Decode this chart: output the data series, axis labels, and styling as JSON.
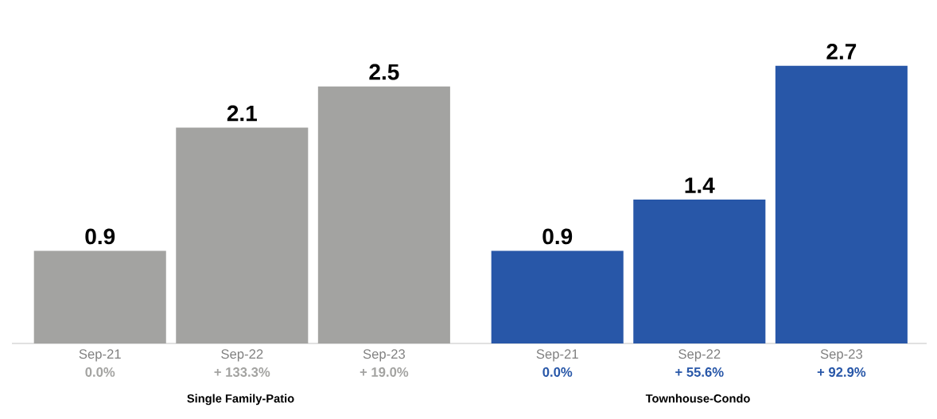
{
  "chart_data": [
    {
      "type": "bar",
      "categories": [
        "Sep-21",
        "Sep-22",
        "Sep-23"
      ],
      "values": [
        0.9,
        2.1,
        2.5
      ],
      "color": "#a3a3a1",
      "data_labels": true,
      "xlabel": "Single Family-Patio",
      "annotations": [
        "0.0%",
        "+ 133.3%",
        "+ 19.0%"
      ]
    },
    {
      "type": "bar",
      "categories": [
        "Sep-21",
        "Sep-22",
        "Sep-23"
      ],
      "values": [
        0.9,
        1.4,
        2.7
      ],
      "color": "#2857a8",
      "data_labels": true,
      "xlabel": "Townhouse-Condo",
      "annotations": [
        "0.0%",
        "+ 55.6%",
        "+ 92.9%"
      ]
    }
  ]
}
